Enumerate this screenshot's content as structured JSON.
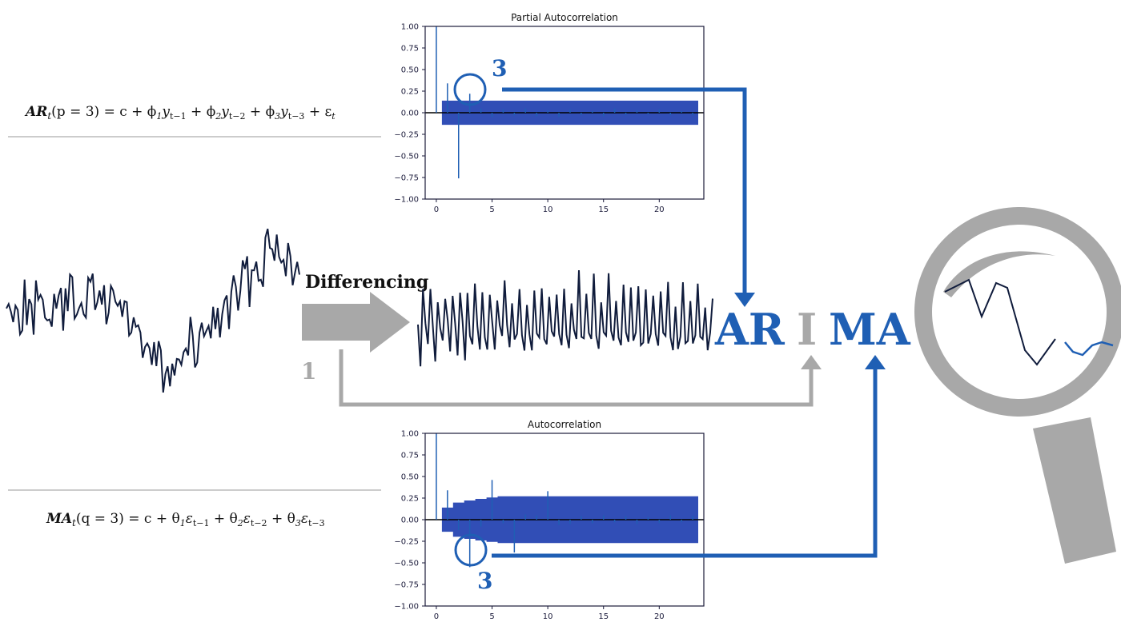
{
  "equations": {
    "ar": {
      "lhs_bold": "AR",
      "lhs_sub": "t",
      "lhs_param": "(p = 3)",
      "rhs": "=  c + ϕ₁y",
      "full_text": "AR_t(p = 3) = c + ϕ1 y_t−1 + ϕ2 y_t−2 + ϕ3 y_t−3 + ε_t"
    },
    "ma": {
      "lhs_bold": "MA",
      "lhs_sub": "t",
      "lhs_param": "(q = 3)",
      "full_text": "MA_t(q = 3) = c + θ1 ε_t−1 + θ2 ε_t−2 + θ3 ε_t−3"
    }
  },
  "labels": {
    "differencing": "Differencing",
    "d_value": "1",
    "p_value": "3",
    "q_value": "3",
    "arima_ar": "AR",
    "arima_i": "I",
    "arima_ma": "MA"
  },
  "colors": {
    "blue": "#1f5fb4",
    "dark_blue": "#0b2a8a",
    "gray": "#a8a8a8",
    "series": "#101c3c"
  },
  "chart_data": [
    {
      "type": "bar",
      "title": "Partial Autocorrelation",
      "x": [
        0,
        1,
        2,
        3,
        4,
        5,
        6,
        7,
        8,
        9,
        10,
        11,
        12,
        13,
        14,
        15,
        16,
        17,
        18,
        19,
        20,
        21,
        22,
        23
      ],
      "values": [
        1.0,
        0.34,
        -0.76,
        0.22,
        0.05,
        -0.05,
        0.04,
        -0.03,
        0.05,
        -0.04,
        0.03,
        -0.05,
        0.04,
        -0.03,
        0.02,
        -0.04,
        0.05,
        -0.03,
        0.03,
        -0.02,
        0.04,
        -0.03,
        0.02,
        -0.03
      ],
      "confidence_band": 0.14,
      "ylim": [
        -1.0,
        1.0
      ],
      "xlim": [
        -1,
        24
      ],
      "yticks": [
        "1.00",
        "0.75",
        "0.50",
        "0.25",
        "0.00",
        "−0.25",
        "−0.50",
        "−0.75",
        "−1.00"
      ],
      "xticks": [
        "0",
        "5",
        "10",
        "15",
        "20"
      ],
      "xlabel": "",
      "ylabel": ""
    },
    {
      "type": "bar",
      "title": "Autocorrelation",
      "x": [
        0,
        1,
        2,
        3,
        4,
        5,
        6,
        7,
        8,
        9,
        10,
        11,
        12,
        13,
        14,
        15,
        16,
        17,
        18,
        19,
        20,
        21,
        22,
        23
      ],
      "values": [
        1.0,
        0.34,
        -0.12,
        -0.55,
        -0.08,
        0.46,
        -0.04,
        -0.38,
        0.06,
        0.05,
        0.33,
        -0.06,
        -0.05,
        0.04,
        -0.04,
        0.05,
        -0.03,
        0.04,
        -0.05,
        0.03,
        -0.04,
        0.05,
        -0.03,
        0.04
      ],
      "confidence_band_start": 0.14,
      "confidence_band_end": 0.27,
      "ylim": [
        -1.0,
        1.0
      ],
      "xlim": [
        -1,
        24
      ],
      "yticks": [
        "1.00",
        "0.75",
        "0.50",
        "0.25",
        "0.00",
        "−0.25",
        "−0.50",
        "−0.75",
        "−1.00"
      ],
      "xticks": [
        "0",
        "5",
        "10",
        "15",
        "20"
      ],
      "xlabel": "",
      "ylabel": ""
    }
  ]
}
